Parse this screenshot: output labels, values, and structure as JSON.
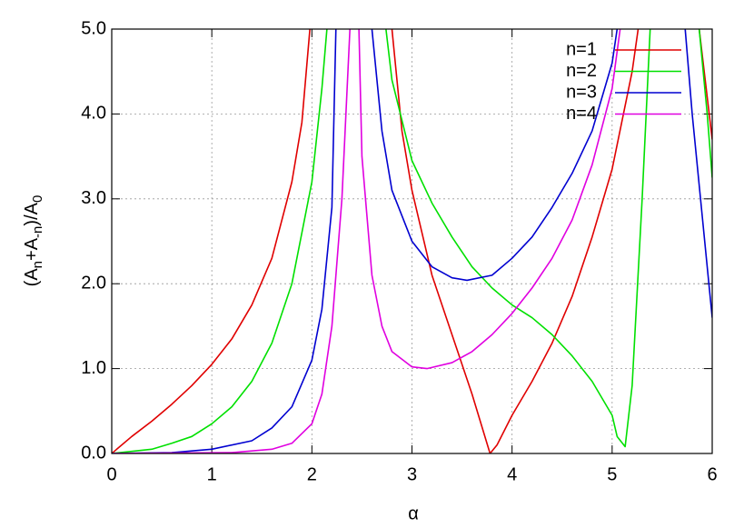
{
  "chart_data": {
    "type": "line",
    "xlabel": "α",
    "ylabel": [
      "(A",
      "n",
      "+A",
      "-n",
      ")/A",
      "0"
    ],
    "xlim": [
      0,
      6
    ],
    "ylim": [
      0,
      5
    ],
    "xticks": [
      0,
      1,
      2,
      3,
      4,
      5,
      6
    ],
    "yticks": [
      {
        "value": 0,
        "label": "0.0"
      },
      {
        "value": 1,
        "label": "1.0"
      },
      {
        "value": 2,
        "label": "2.0"
      },
      {
        "value": 3,
        "label": "3.0"
      },
      {
        "value": 4,
        "label": "4.0"
      },
      {
        "value": 5,
        "label": "5.0"
      }
    ],
    "grid": true,
    "legend": "top-right",
    "series": [
      {
        "name": "n=1",
        "color": "#e00000",
        "x": [
          0,
          0.2,
          0.4,
          0.6,
          0.8,
          1.0,
          1.2,
          1.4,
          1.6,
          1.8,
          1.9,
          1.98,
          null,
          2.8,
          2.9,
          3.0,
          3.2,
          3.4,
          3.6,
          3.78,
          3.85,
          4.0,
          4.2,
          4.4,
          4.6,
          4.8,
          5.0,
          5.2,
          5.26,
          null,
          5.87,
          5.95,
          6.0
        ],
        "values": [
          0,
          0.2,
          0.38,
          0.58,
          0.8,
          1.05,
          1.35,
          1.75,
          2.3,
          3.2,
          3.9,
          5,
          null,
          5,
          3.8,
          3.1,
          2.1,
          1.4,
          0.7,
          0,
          0.1,
          0.45,
          0.85,
          1.3,
          1.85,
          2.55,
          3.35,
          4.5,
          5,
          null,
          5,
          4.2,
          3.7
        ]
      },
      {
        "name": "n=2",
        "color": "#00e000",
        "x": [
          0,
          0.4,
          0.6,
          0.8,
          1.0,
          1.2,
          1.4,
          1.6,
          1.8,
          2.0,
          2.1,
          2.15,
          null,
          2.74,
          2.8,
          3.0,
          3.2,
          3.4,
          3.6,
          3.8,
          4.0,
          4.2,
          4.4,
          4.6,
          4.8,
          5.0,
          5.05,
          5.13,
          5.2,
          5.3,
          5.38,
          null,
          5.87,
          5.95,
          6.0
        ],
        "values": [
          0,
          0.05,
          0.12,
          0.2,
          0.35,
          0.55,
          0.85,
          1.3,
          2.0,
          3.2,
          4.3,
          5,
          null,
          5,
          4.4,
          3.45,
          2.95,
          2.55,
          2.2,
          1.95,
          1.75,
          1.6,
          1.4,
          1.15,
          0.85,
          0.45,
          0.2,
          0.08,
          0.8,
          3,
          5,
          null,
          5,
          4.0,
          3.25
        ]
      },
      {
        "name": "n=3",
        "color": "#0000d0",
        "x": [
          0,
          0.6,
          1.0,
          1.4,
          1.6,
          1.8,
          2.0,
          2.1,
          2.2,
          2.24,
          null,
          2.6,
          2.7,
          2.8,
          3.0,
          3.2,
          3.4,
          3.55,
          3.8,
          4.0,
          4.2,
          4.4,
          4.6,
          4.8,
          5.0,
          5.05,
          null,
          5.73,
          5.8,
          5.9,
          6.0
        ],
        "values": [
          0,
          0.01,
          0.05,
          0.15,
          0.3,
          0.55,
          1.1,
          1.7,
          2.9,
          5,
          null,
          5,
          3.8,
          3.1,
          2.5,
          2.2,
          2.07,
          2.04,
          2.1,
          2.3,
          2.55,
          2.9,
          3.3,
          3.8,
          4.6,
          5,
          null,
          5,
          4.0,
          2.8,
          1.6
        ]
      },
      {
        "name": "n=4",
        "color": "#e000e0",
        "x": [
          0,
          1.2,
          1.6,
          1.8,
          2.0,
          2.1,
          2.2,
          2.3,
          2.38,
          null,
          2.47,
          2.5,
          2.6,
          2.7,
          2.8,
          3.0,
          3.15,
          3.4,
          3.6,
          3.8,
          4.0,
          4.2,
          4.4,
          4.6,
          4.8,
          5.0,
          5.08
        ],
        "values": [
          0,
          0.01,
          0.05,
          0.12,
          0.35,
          0.7,
          1.5,
          3.0,
          5,
          null,
          5,
          3.5,
          2.1,
          1.5,
          1.2,
          1.02,
          1.0,
          1.07,
          1.2,
          1.4,
          1.65,
          1.95,
          2.3,
          2.75,
          3.4,
          4.3,
          5
        ]
      }
    ]
  }
}
